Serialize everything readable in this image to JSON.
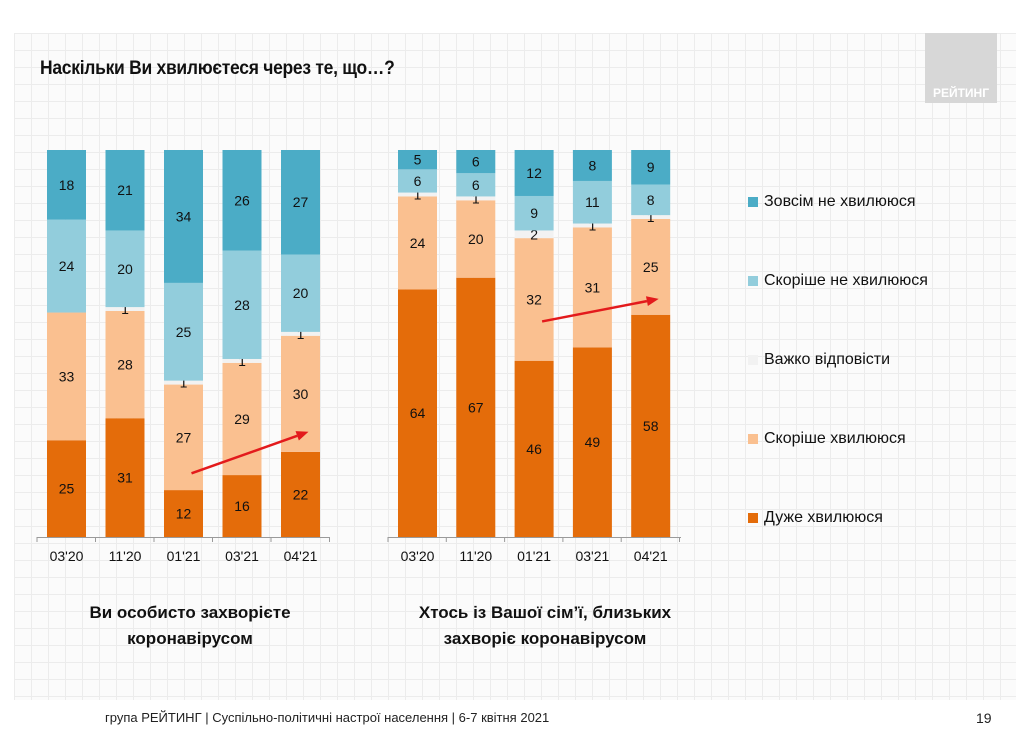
{
  "title": "Наскільки Ви хвилюєтеся через те, що…?",
  "logo_text": "РЕЙТИНГ",
  "footer": "група РЕЙТИНГ | Суспільно-політичні настрої населення | 6-7 квітня 2021",
  "page_number": "19",
  "colors": {
    "zovsim_ne": "#4bacc6",
    "skorishe_ne": "#92cddc",
    "vazhko": "#f2f2f2",
    "skorishe": "#fac090",
    "duzhe": "#e46c0a",
    "arrow": "#e31a1c"
  },
  "legend": [
    {
      "label": "Зовсім не хвилююся",
      "color": "#4bacc6"
    },
    {
      "label": "Скоріше не хвилююся",
      "color": "#92cddc"
    },
    {
      "label": "Важко відповісти",
      "color": "#f2f2f2"
    },
    {
      "label": "Скоріше хвилююся",
      "color": "#fac090"
    },
    {
      "label": "Дуже хвилююся",
      "color": "#e46c0a"
    }
  ],
  "chart_data": [
    {
      "type": "bar",
      "stacked": true,
      "title": "Ви особисто захворієте коронавірусом",
      "title_lines": [
        "Ви особисто захворієте",
        "коронавірусом"
      ],
      "categories": [
        "03'20",
        "11'20",
        "01'21",
        "03'21",
        "04'21"
      ],
      "ylim": [
        0,
        100
      ],
      "series": [
        {
          "name": "Дуже хвилююся",
          "values": [
            25,
            31,
            12,
            16,
            22
          ]
        },
        {
          "name": "Скоріше хвилююся",
          "values": [
            33,
            28,
            27,
            29,
            30
          ]
        },
        {
          "name": "Важко відповісти",
          "values": [
            0,
            1,
            1,
            1,
            1
          ]
        },
        {
          "name": "Скоріше не хвилююся",
          "values": [
            24,
            20,
            25,
            28,
            20
          ]
        },
        {
          "name": "Зовсім не хвилююся",
          "values": [
            18,
            21,
            34,
            26,
            27
          ]
        }
      ],
      "annotation": {
        "type": "arrow",
        "from_category": "01'21",
        "to_category": "04'21",
        "meaning": "increase in concern"
      }
    },
    {
      "type": "bar",
      "stacked": true,
      "title": "Хтось із Вашої сім'ї, близьких захворіє коронавірусом",
      "title_lines": [
        "Хтось із Вашої сім’ї, близьких",
        "захворіє коронавірусом"
      ],
      "categories": [
        "03'20",
        "11'20",
        "01'21",
        "03'21",
        "04'21"
      ],
      "ylim": [
        0,
        100
      ],
      "series": [
        {
          "name": "Дуже хвилююся",
          "values": [
            64,
            67,
            46,
            49,
            58
          ]
        },
        {
          "name": "Скоріше хвилююся",
          "values": [
            24,
            20,
            32,
            31,
            25
          ]
        },
        {
          "name": "Важко відповісти",
          "values": [
            1,
            1,
            2,
            1,
            1
          ]
        },
        {
          "name": "Скоріше не хвилююся",
          "values": [
            6,
            6,
            9,
            11,
            8
          ]
        },
        {
          "name": "Зовсім не хвилююся",
          "values": [
            5,
            6,
            12,
            8,
            9
          ]
        }
      ],
      "annotation": {
        "type": "arrow",
        "from_category": "01'21",
        "to_category": "04'21",
        "meaning": "increase in concern"
      }
    }
  ]
}
